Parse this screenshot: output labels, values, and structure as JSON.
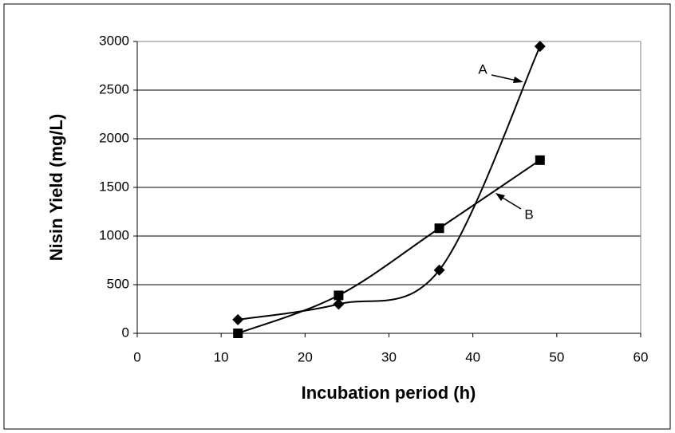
{
  "chart_data": {
    "type": "line",
    "x_label": "Incubation period (h)",
    "y_label": "Nisin Yield (mg/L)",
    "series": [
      {
        "name": "A",
        "color": "#000000",
        "marker": "diamond",
        "x": [
          12,
          24,
          36,
          48
        ],
        "values": [
          140,
          300,
          650,
          2950
        ]
      },
      {
        "name": "B",
        "color": "#000000",
        "marker": "square",
        "x": [
          12,
          24,
          36,
          48
        ],
        "values": [
          0,
          390,
          1080,
          1780
        ]
      }
    ],
    "xlim": [
      0,
      60
    ],
    "xticks": [
      0,
      10,
      20,
      30,
      40,
      50,
      60
    ],
    "ylim": [
      0,
      3000
    ],
    "yticks": [
      0,
      500,
      1000,
      1500,
      2000,
      2500,
      3000
    ],
    "grid": true,
    "smooth": true
  }
}
